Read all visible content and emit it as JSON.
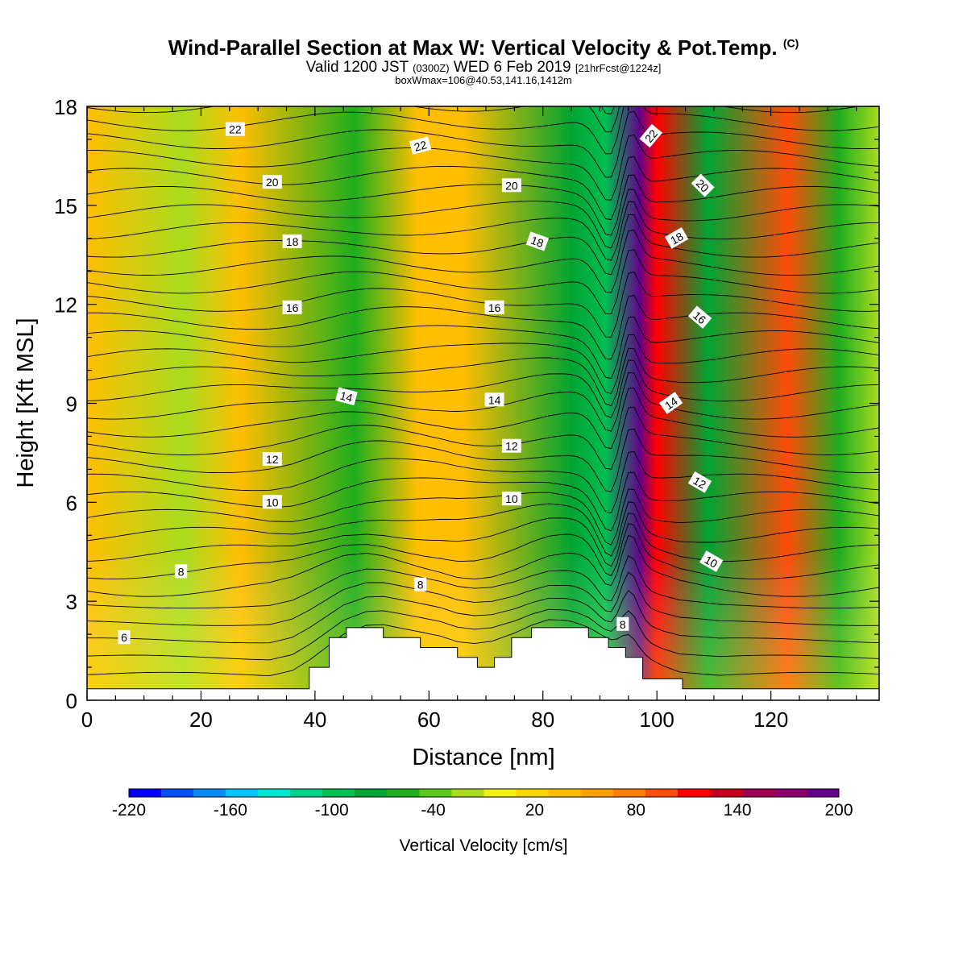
{
  "header": {
    "title": "Wind-Parallel Section at Max W: Vertical Velocity & Pot.Temp.",
    "title_mark": "(C)",
    "valid_prefix": "Valid 1200 JST",
    "valid_utc": "(0300Z)",
    "valid_date": "WED 6 Feb 2019",
    "forecast": "[21hrFcst@1224z]",
    "box_info": "boxWmax=106@40.53,141.16,1412m"
  },
  "chart_data": {
    "type": "heatmap",
    "title": "Wind-Parallel Section at Max W: Vertical Velocity & Pot.Temp.",
    "xlabel": "Distance [nm]",
    "ylabel": "Height [Kft MSL]",
    "xlim": [
      0,
      139
    ],
    "ylim": [
      0,
      18
    ],
    "x_ticks": [
      "0",
      "20",
      "40",
      "60",
      "80",
      "100",
      "120"
    ],
    "y_ticks": [
      "0",
      "3",
      "6",
      "9",
      "12",
      "15",
      "18"
    ],
    "colorbar": {
      "label": "Vertical Velocity [cm/s]",
      "tick_labels": [
        "-220",
        "-160",
        "-100",
        "-40",
        "20",
        "80",
        "140",
        "200"
      ],
      "range": [
        -220,
        200
      ],
      "colors": [
        "#0000ff",
        "#0a4ef5",
        "#0a8cf5",
        "#00c8ff",
        "#00e6d2",
        "#00d28c",
        "#00be50",
        "#00a432",
        "#1eae1e",
        "#5ac81e",
        "#aadc1e",
        "#f0f014",
        "#ffd700",
        "#ffbe00",
        "#ffa000",
        "#ff7d00",
        "#ff4b0a",
        "#ff0000",
        "#c8001e",
        "#a00050",
        "#8c006e",
        "#64008c"
      ]
    },
    "vertical_velocity_bands": [
      {
        "x": 17,
        "w": -20
      },
      {
        "x": 27,
        "w": 30
      },
      {
        "x": 47,
        "w": -60
      },
      {
        "x": 58,
        "w": 30
      },
      {
        "x": 66,
        "w": 40
      },
      {
        "x": 85,
        "w": -70
      },
      {
        "x": 91,
        "w": -100
      },
      {
        "x": 97,
        "w": 195
      },
      {
        "x": 100,
        "w": 120
      },
      {
        "x": 109,
        "w": -80
      },
      {
        "x": 123,
        "w": 100
      },
      {
        "x": 132,
        "w": -50
      }
    ],
    "terrain": [
      {
        "x": 0,
        "z": 0.35
      },
      {
        "x": 39,
        "z": 0.35
      },
      {
        "x": 39,
        "z": 1.0
      },
      {
        "x": 42.5,
        "z": 1.0
      },
      {
        "x": 42.5,
        "z": 1.9
      },
      {
        "x": 45.5,
        "z": 1.9
      },
      {
        "x": 45.5,
        "z": 2.2
      },
      {
        "x": 52,
        "z": 2.2
      },
      {
        "x": 52,
        "z": 1.9
      },
      {
        "x": 58.5,
        "z": 1.9
      },
      {
        "x": 58.5,
        "z": 1.6
      },
      {
        "x": 65,
        "z": 1.6
      },
      {
        "x": 65,
        "z": 1.3
      },
      {
        "x": 68.5,
        "z": 1.3
      },
      {
        "x": 68.5,
        "z": 1.0
      },
      {
        "x": 71.5,
        "z": 1.0
      },
      {
        "x": 71.5,
        "z": 1.3
      },
      {
        "x": 74.5,
        "z": 1.3
      },
      {
        "x": 74.5,
        "z": 1.9
      },
      {
        "x": 78,
        "z": 1.9
      },
      {
        "x": 78,
        "z": 2.2
      },
      {
        "x": 88,
        "z": 2.2
      },
      {
        "x": 88,
        "z": 1.9
      },
      {
        "x": 91.5,
        "z": 1.9
      },
      {
        "x": 91.5,
        "z": 1.6
      },
      {
        "x": 94.5,
        "z": 1.6
      },
      {
        "x": 94.5,
        "z": 1.3
      },
      {
        "x": 97.5,
        "z": 1.3
      },
      {
        "x": 97.5,
        "z": 0.65
      },
      {
        "x": 104.5,
        "z": 0.65
      },
      {
        "x": 104.5,
        "z": 0.35
      },
      {
        "x": 139,
        "z": 0.35
      }
    ],
    "isentrope_labels": [
      {
        "text": "22",
        "x": 26,
        "y": 17.3,
        "angle": 0
      },
      {
        "text": "20",
        "x": 32.5,
        "y": 15.7,
        "angle": 0
      },
      {
        "text": "18",
        "x": 36,
        "y": 13.9,
        "angle": 0
      },
      {
        "text": "16",
        "x": 36,
        "y": 11.9,
        "angle": 0
      },
      {
        "text": "14",
        "x": 45.5,
        "y": 9.2,
        "angle": 15
      },
      {
        "text": "12",
        "x": 32.5,
        "y": 7.3,
        "angle": 0
      },
      {
        "text": "10",
        "x": 32.5,
        "y": 6.0,
        "angle": 0
      },
      {
        "text": "8",
        "x": 16.5,
        "y": 3.9,
        "angle": 0
      },
      {
        "text": "6",
        "x": 6.5,
        "y": 1.9,
        "angle": 0
      },
      {
        "text": "22",
        "x": 58.5,
        "y": 16.8,
        "angle": -15
      },
      {
        "text": "20",
        "x": 74.5,
        "y": 15.6,
        "angle": 0
      },
      {
        "text": "18",
        "x": 79,
        "y": 13.9,
        "angle": 20
      },
      {
        "text": "16",
        "x": 71.5,
        "y": 11.9,
        "angle": 0
      },
      {
        "text": "14",
        "x": 71.5,
        "y": 9.1,
        "angle": 0
      },
      {
        "text": "12",
        "x": 74.5,
        "y": 7.7,
        "angle": 0
      },
      {
        "text": "10",
        "x": 74.5,
        "y": 6.1,
        "angle": 0
      },
      {
        "text": "8",
        "x": 58.5,
        "y": 3.5,
        "angle": 0
      },
      {
        "text": "22",
        "x": 99,
        "y": 17.1,
        "angle": -50
      },
      {
        "text": "20",
        "x": 108,
        "y": 15.6,
        "angle": 45
      },
      {
        "text": "18",
        "x": 103.5,
        "y": 14.0,
        "angle": -30
      },
      {
        "text": "16",
        "x": 107.5,
        "y": 11.6,
        "angle": 40
      },
      {
        "text": "14",
        "x": 102.5,
        "y": 9.0,
        "angle": -35
      },
      {
        "text": "12",
        "x": 107.5,
        "y": 6.6,
        "angle": 30
      },
      {
        "text": "10",
        "x": 109.5,
        "y": 4.2,
        "angle": 30
      },
      {
        "text": "8",
        "x": 94,
        "y": 2.3,
        "angle": 0
      }
    ]
  }
}
